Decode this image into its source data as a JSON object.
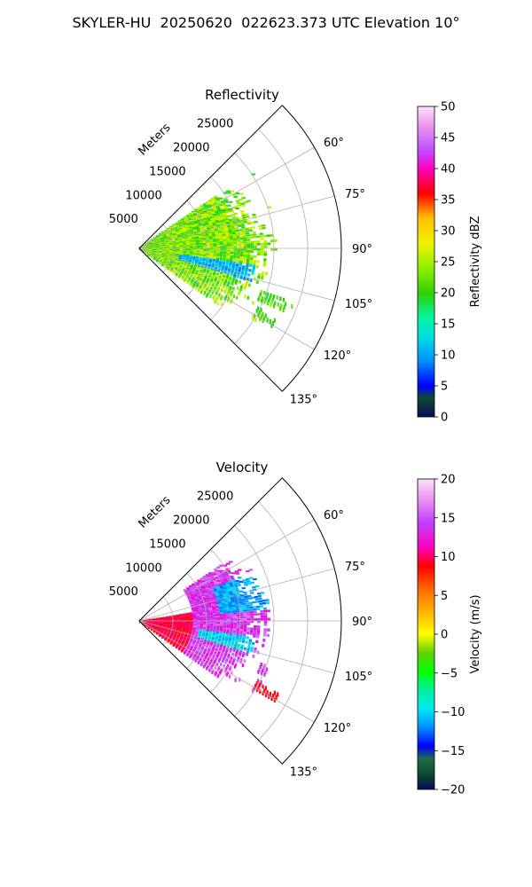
{
  "figure": {
    "suptitle": "SKYLER-HU  20250620  022623.373 UTC Elevation 10°"
  },
  "chart_data": [
    {
      "type": "heatmap",
      "projection": "polar-sector",
      "title": "Reflectivity",
      "radial_label": "Meters",
      "r_ticks": [
        5000,
        10000,
        15000,
        20000,
        25000
      ],
      "theta_ticks": [
        60,
        75,
        90,
        105,
        120,
        135
      ],
      "theta_tick_labels": [
        "60°",
        "75°",
        "90°",
        "105°",
        "120°",
        "135°"
      ],
      "theta_range": [
        45,
        135
      ],
      "r_max": 30000,
      "grid": true,
      "colorbar": {
        "label": "Reflectivity dBZ",
        "range": [
          0,
          50
        ],
        "ticks": [
          0,
          5,
          10,
          15,
          20,
          25,
          30,
          35,
          40,
          45,
          50
        ],
        "colormap": "pyart_HomeyerRainbow"
      },
      "echo_regions": [
        {
          "az": [
            55,
            125
          ],
          "r": [
            0,
            20000
          ],
          "values_dbz": [
            18,
            28
          ]
        },
        {
          "az": [
            98,
            106
          ],
          "r": [
            6000,
            17000
          ],
          "values_dbz": [
            8,
            14
          ]
        },
        {
          "az": [
            117,
            121
          ],
          "r": [
            19000,
            24000
          ],
          "values_dbz": [
            18,
            22
          ]
        },
        {
          "az": [
            109,
            113
          ],
          "r": [
            19000,
            24000
          ],
          "values_dbz": [
            18,
            24
          ]
        }
      ]
    },
    {
      "type": "heatmap",
      "projection": "polar-sector",
      "title": "Velocity",
      "radial_label": "Meters",
      "r_ticks": [
        5000,
        10000,
        15000,
        20000,
        25000
      ],
      "theta_ticks": [
        60,
        75,
        90,
        105,
        120,
        135
      ],
      "theta_tick_labels": [
        "60°",
        "75°",
        "90°",
        "105°",
        "120°",
        "135°"
      ],
      "theta_range": [
        45,
        135
      ],
      "r_max": 30000,
      "grid": true,
      "colorbar": {
        "label": "Velocity (m/s)",
        "range": [
          -20,
          20
        ],
        "ticks": [
          -20,
          -15,
          -10,
          -5,
          0,
          5,
          10,
          15,
          20
        ],
        "colormap": "pyart_BuDRd18"
      },
      "echo_regions": [
        {
          "az": [
            80,
            125
          ],
          "r": [
            0,
            10000
          ],
          "values_ms": [
            8,
            12
          ]
        },
        {
          "az": [
            55,
            125
          ],
          "r": [
            8000,
            20000
          ],
          "values_ms": [
            12,
            17
          ]
        },
        {
          "az": [
            65,
            85
          ],
          "r": [
            12000,
            19000
          ],
          "values_ms": [
            -14,
            -11
          ]
        },
        {
          "az": [
            98,
            106
          ],
          "r": [
            9000,
            17000
          ],
          "values_ms": [
            -13,
            -10
          ]
        },
        {
          "az": [
            117,
            121
          ],
          "r": [
            19000,
            24000
          ],
          "values_ms": [
            8,
            11
          ]
        }
      ]
    }
  ]
}
